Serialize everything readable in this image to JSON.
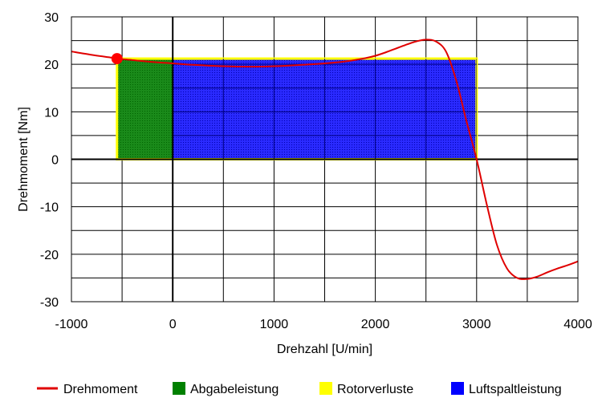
{
  "chart_data": {
    "type": "line",
    "title": "",
    "xlabel": "Drehzahl [U/min]",
    "ylabel": "Drehmoment [Nm]",
    "xlim": [
      -1000,
      4000
    ],
    "ylim": [
      -30,
      30
    ],
    "x_ticks": [
      -1000,
      0,
      1000,
      2000,
      3000,
      4000
    ],
    "y_ticks": [
      -30,
      -20,
      -10,
      0,
      10,
      20,
      30
    ],
    "x_grid_step": 500,
    "y_grid_step": 5,
    "grid": true,
    "series": [
      {
        "name": "Drehmoment",
        "color": "#e00000",
        "x": [
          -1000,
          -800,
          -600,
          -550,
          -400,
          -200,
          0,
          200,
          500,
          800,
          1000,
          1200,
          1500,
          1700,
          1900,
          2000,
          2100,
          2200,
          2300,
          2400,
          2500,
          2600,
          2700,
          2800,
          2900,
          3000,
          3100,
          3200,
          3300,
          3400,
          3500,
          3600,
          3700,
          3800,
          3900,
          4000
        ],
        "y": [
          22.7,
          22.0,
          21.4,
          21.2,
          20.9,
          20.5,
          20.2,
          19.9,
          19.6,
          19.5,
          19.6,
          19.8,
          20.2,
          20.6,
          21.3,
          21.8,
          22.5,
          23.3,
          24.1,
          24.8,
          25.2,
          24.8,
          22.6,
          16.5,
          8.0,
          0.0,
          -9.5,
          -18.0,
          -23.0,
          -25.0,
          -25.2,
          -24.7,
          -23.8,
          -23.0,
          -22.3,
          -21.5
        ]
      }
    ],
    "marker": {
      "x": -550,
      "y": 21.2,
      "color": "#ff0000"
    },
    "areas": [
      {
        "name": "Abgabeleistung",
        "color": "#008000",
        "x0": -550,
        "x1": 0,
        "y0": 0,
        "y1": 21.2
      },
      {
        "name": "Luftspaltleistung",
        "color": "#0000ff",
        "x0": 0,
        "x1": 3000,
        "y0": 0,
        "y1": 21.2
      },
      {
        "name": "Rotorverluste",
        "color": "#ffff00",
        "x0": -550,
        "x1": 3000,
        "y0": 0,
        "y1": 21.2
      }
    ],
    "legend": {
      "placement": "bottom",
      "items": [
        {
          "label": "Drehmoment",
          "kind": "line",
          "color": "#e00000"
        },
        {
          "label": "Abgabeleistung",
          "kind": "box",
          "color": "#008000"
        },
        {
          "label": "Rotorverluste",
          "kind": "box",
          "color": "#ffff00"
        },
        {
          "label": "Luftspaltleistung",
          "kind": "box",
          "color": "#0000ff"
        }
      ]
    }
  }
}
